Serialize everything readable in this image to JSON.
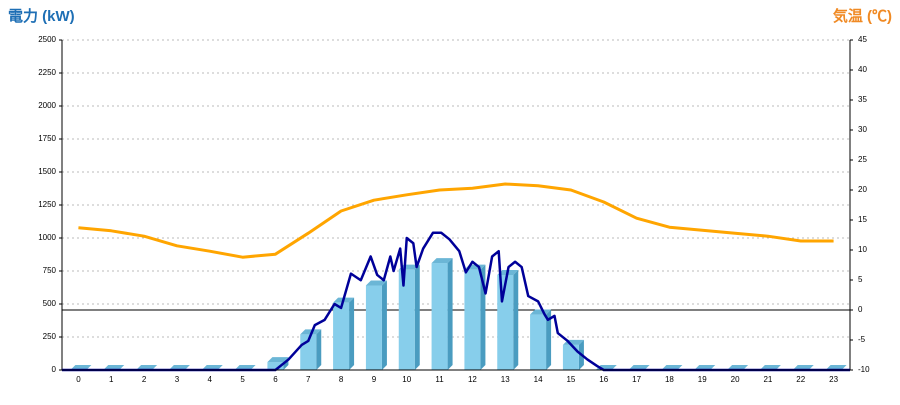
{
  "chart_data": {
    "type": "bar",
    "title": "電力 (kW)",
    "y2_title": "気温 (℃)",
    "categories": [
      "0",
      "1",
      "2",
      "3",
      "4",
      "5",
      "6",
      "7",
      "8",
      "9",
      "10",
      "11",
      "12",
      "13",
      "14",
      "15",
      "16",
      "17",
      "18",
      "19",
      "20",
      "21",
      "22",
      "23"
    ],
    "ylim": [
      0,
      2500
    ],
    "yticks": [
      0,
      250,
      500,
      750,
      1000,
      1250,
      1500,
      1750,
      2000,
      2250,
      2500
    ],
    "y2lim": [
      -10,
      45
    ],
    "y2ticks": [
      -10,
      -5,
      0,
      5,
      10,
      15,
      20,
      25,
      30,
      35,
      40,
      45
    ],
    "grid": true,
    "series": [
      {
        "type": "bar",
        "color": "#87ceeb",
        "values": [
          0,
          0,
          0,
          0,
          0,
          0,
          60,
          270,
          510,
          640,
          760,
          810,
          760,
          720,
          420,
          190,
          0,
          0,
          0,
          0,
          0,
          0,
          0,
          0
        ]
      },
      {
        "type": "line",
        "color": "#000099",
        "x": [
          -0.5,
          6.0,
          6.4,
          6.8,
          7.0,
          7.2,
          7.5,
          7.8,
          8.0,
          8.3,
          8.6,
          8.9,
          9.1,
          9.3,
          9.5,
          9.6,
          9.8,
          9.9,
          10.0,
          10.2,
          10.3,
          10.5,
          10.8,
          11.05,
          11.3,
          11.6,
          11.8,
          12.0,
          12.2,
          12.4,
          12.6,
          12.8,
          12.9,
          13.1,
          13.3,
          13.5,
          13.7,
          14.0,
          14.2,
          14.3,
          14.5,
          14.6,
          14.9,
          15.2,
          15.5,
          15.8,
          16.0,
          23.5
        ],
        "values": [
          0,
          0,
          80,
          190,
          220,
          340,
          380,
          500,
          470,
          730,
          680,
          860,
          720,
          680,
          860,
          750,
          920,
          640,
          1000,
          960,
          780,
          920,
          1040,
          1040,
          990,
          900,
          740,
          820,
          780,
          580,
          860,
          900,
          520,
          780,
          820,
          780,
          560,
          520,
          420,
          380,
          410,
          280,
          220,
          140,
          80,
          30,
          0,
          0
        ]
      },
      {
        "type": "line",
        "axis": "y2",
        "color": "#ffa500",
        "values": [
          13.7,
          13.2,
          12.3,
          10.7,
          9.8,
          8.8,
          9.3,
          12.8,
          16.5,
          18.3,
          19.2,
          20,
          20.3,
          21,
          20.7,
          20,
          18,
          15.3,
          13.8,
          13.3,
          12.8,
          12.3,
          11.5,
          11.5
        ]
      }
    ]
  }
}
